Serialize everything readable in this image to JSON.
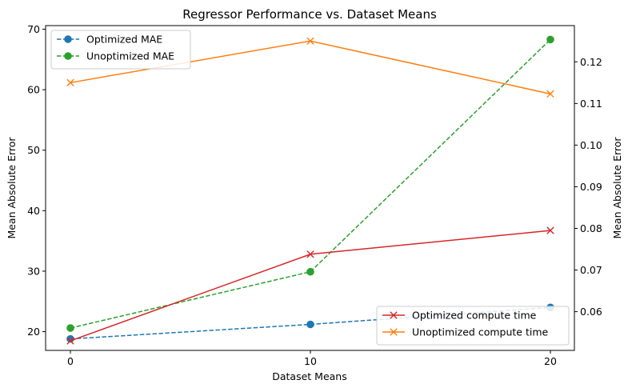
{
  "chart_data": {
    "type": "line",
    "title": "Regressor Performance vs. Dataset Means",
    "xlabel": "Dataset Means",
    "ylabel_left": "Mean Absolute Error",
    "ylabel_right": "Mean Absolute Error",
    "x": [
      0,
      10,
      20
    ],
    "x_ticks": [
      "0",
      "10",
      "20"
    ],
    "left_axis": {
      "ylim": [
        16.9,
        70.6
      ],
      "ticks": [
        20,
        30,
        40,
        50,
        60,
        70
      ],
      "tick_labels": [
        "20",
        "30",
        "40",
        "50",
        "60",
        "70"
      ]
    },
    "right_axis": {
      "ylim": [
        0.0507,
        0.1287
      ],
      "ticks": [
        0.06,
        0.07,
        0.08,
        0.09,
        0.1,
        0.11,
        0.12
      ],
      "tick_labels": [
        "0.06",
        "0.07",
        "0.08",
        "0.09",
        "0.10",
        "0.11",
        "0.12"
      ]
    },
    "series": [
      {
        "name": "Optimized MAE",
        "axis": "left",
        "values": [
          18.8,
          21.2,
          24.0
        ],
        "color": "#1f77b4",
        "linestyle": "dashed",
        "marker": "circle"
      },
      {
        "name": "Unoptimized MAE",
        "axis": "left",
        "values": [
          20.6,
          29.9,
          68.3
        ],
        "color": "#2ca02c",
        "linestyle": "dashed",
        "marker": "circle"
      },
      {
        "name": "Optimized compute time",
        "axis": "right",
        "values": [
          0.053,
          0.0738,
          0.0795
        ],
        "color": "#d62728",
        "linestyle": "solid",
        "marker": "x"
      },
      {
        "name": "Unoptimized compute time",
        "axis": "right",
        "values": [
          0.115,
          0.125,
          0.1123
        ],
        "color": "#ff7f0e",
        "linestyle": "solid",
        "marker": "x"
      }
    ],
    "legends": [
      {
        "placement": "top-left",
        "series": [
          "Optimized MAE",
          "Unoptimized MAE"
        ]
      },
      {
        "placement": "bottom-right",
        "series": [
          "Optimized compute time",
          "Unoptimized compute time"
        ]
      }
    ],
    "grid": false
  }
}
